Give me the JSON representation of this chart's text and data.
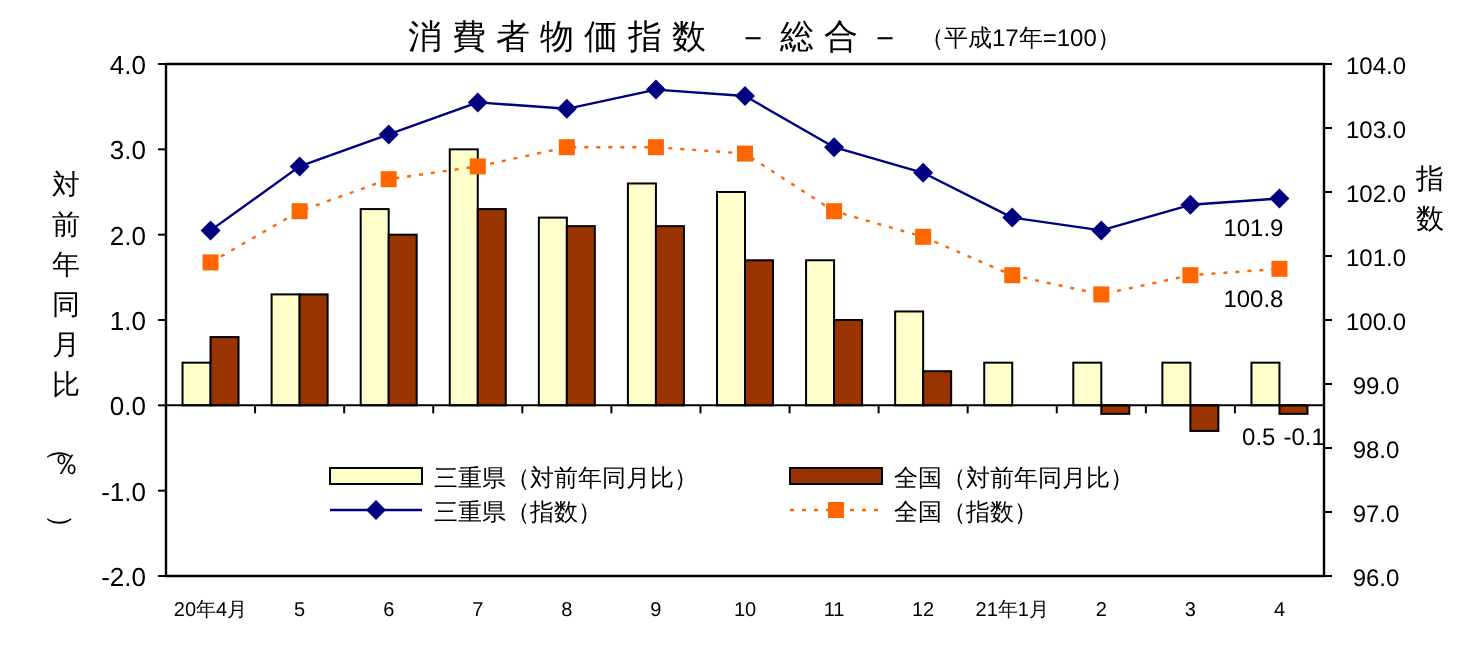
{
  "chart_data": {
    "type": "bar",
    "title": "消費者物価指数 －総合－",
    "subtitle": "（平成17年=100）",
    "ylabel": "対前年同月比（％）",
    "y2label": "指数",
    "categories": [
      "20年4月",
      "5",
      "6",
      "7",
      "8",
      "9",
      "10",
      "11",
      "12",
      "21年1月",
      "2",
      "3",
      "4"
    ],
    "series": [
      {
        "name": "三重県（対前年同月比）",
        "color": "#ffffcc",
        "values": [
          0.5,
          1.3,
          2.3,
          3.0,
          2.2,
          2.6,
          2.5,
          1.7,
          1.1,
          0.5,
          0.5,
          0.5,
          0.5
        ],
        "value_labels": [
          null,
          null,
          null,
          null,
          null,
          null,
          null,
          null,
          null,
          null,
          null,
          null,
          "0.5"
        ]
      },
      {
        "name": "全国（対前年同月比）",
        "color": "#993300",
        "values": [
          0.8,
          1.3,
          2.0,
          2.3,
          2.1,
          2.1,
          1.7,
          1.0,
          0.4,
          0.0,
          -0.1,
          -0.3,
          -0.1
        ],
        "value_labels": [
          null,
          null,
          null,
          null,
          null,
          null,
          null,
          null,
          null,
          null,
          null,
          null,
          "-0.1"
        ]
      },
      {
        "name": "三重県（指数）",
        "type": "line",
        "axis": "y2",
        "color": "#000080",
        "marker": "diamond",
        "line_style": "solid",
        "values": [
          101.4,
          102.4,
          102.9,
          103.4,
          103.3,
          103.6,
          103.5,
          102.7,
          102.3,
          101.6,
          101.4,
          101.8,
          101.9
        ],
        "value_labels": [
          null,
          null,
          null,
          null,
          null,
          null,
          null,
          null,
          null,
          null,
          null,
          null,
          "101.9"
        ]
      },
      {
        "name": "全国（指数）",
        "type": "line",
        "axis": "y2",
        "color": "#ff6600",
        "marker": "square",
        "line_style": "dotted",
        "values": [
          100.9,
          101.7,
          102.2,
          102.4,
          102.7,
          102.7,
          102.6,
          101.7,
          101.3,
          100.7,
          100.4,
          100.7,
          100.8
        ],
        "value_labels": [
          null,
          null,
          null,
          null,
          null,
          null,
          null,
          null,
          null,
          null,
          null,
          null,
          "100.8"
        ]
      }
    ],
    "ylim": [
      -2.0,
      4.0
    ],
    "yticks": [
      {
        "value": -2,
        "label": "-2.0"
      },
      {
        "value": -1,
        "label": "-1.0"
      },
      {
        "value": 0,
        "label": "0.0"
      },
      {
        "value": 1,
        "label": "1.0"
      },
      {
        "value": 2,
        "label": "2.0"
      },
      {
        "value": 3,
        "label": "3.0"
      },
      {
        "value": 4,
        "label": "4.0"
      }
    ],
    "y2lim": [
      96.0,
      104.0
    ],
    "y2ticks": [
      {
        "value": 96,
        "label": "96.0"
      },
      {
        "value": 97,
        "label": "97.0"
      },
      {
        "value": 98,
        "label": "98.0"
      },
      {
        "value": 99,
        "label": "99.0"
      },
      {
        "value": 100,
        "label": "100.0"
      },
      {
        "value": 101,
        "label": "101.0"
      },
      {
        "value": 102,
        "label": "102.0"
      },
      {
        "value": 103,
        "label": "103.0"
      },
      {
        "value": 104,
        "label": "104.0"
      }
    ],
    "legend": "bottom"
  }
}
